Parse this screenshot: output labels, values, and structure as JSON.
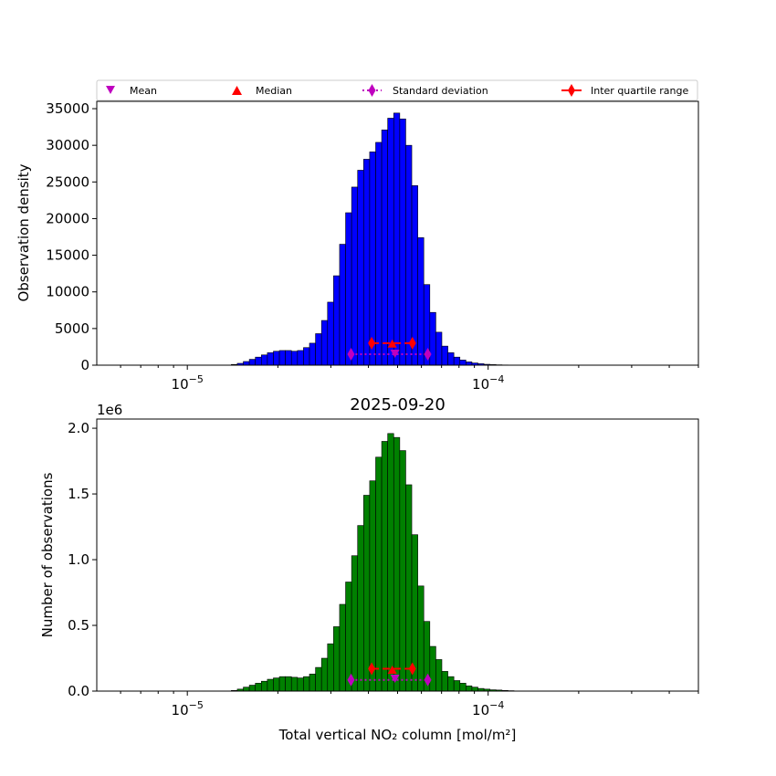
{
  "colors": {
    "top_bars": "#0000ff",
    "bottom_bars": "#008000",
    "bar_edge": "#000000",
    "mean": "#bf00bf",
    "std": "#bf00bf",
    "median": "#ff0000",
    "iqr": "#ff0000"
  },
  "legend": {
    "placement": "top-center",
    "entries": [
      {
        "label": "Mean",
        "marker": "triangle-down",
        "color": "#bf00bf"
      },
      {
        "label": "Median",
        "marker": "triangle-up",
        "color": "#ff0000"
      },
      {
        "label": "Standard deviation",
        "marker": "diamond-dotted-line",
        "color": "#bf00bf"
      },
      {
        "label": "Inter quartile range",
        "marker": "diamond-solid-line",
        "color": "#ff0000"
      }
    ]
  },
  "chart_data": [
    {
      "type": "bar",
      "title": "",
      "xlabel": "",
      "ylabel": "Observation density",
      "xscale": "log",
      "xlim": [
        5e-06,
        0.0005
      ],
      "ylim": [
        0,
        36000
      ],
      "yticks": [
        0,
        5000,
        10000,
        15000,
        20000,
        25000,
        30000,
        35000
      ],
      "ytick_labels": [
        "0",
        "5000",
        "10000",
        "15000",
        "20000",
        "25000",
        "30000",
        "35000"
      ],
      "xtick_labels": [
        "10−5",
        "10−4"
      ],
      "xticks": [
        1e-05,
        0.0001
      ],
      "bin_width_decades": 0.02,
      "bin_start": 1.4e-05,
      "values": [
        100,
        250,
        500,
        800,
        1100,
        1400,
        1700,
        1900,
        2000,
        2000,
        1900,
        2000,
        2400,
        3000,
        4300,
        6100,
        8600,
        12200,
        16500,
        20800,
        24300,
        26600,
        28100,
        29100,
        30400,
        32100,
        33700,
        34400,
        33600,
        30000,
        24500,
        17400,
        11000,
        7200,
        4500,
        2600,
        1700,
        1100,
        700,
        450,
        300,
        200,
        120,
        80,
        50,
        30,
        20
      ],
      "stats": {
        "mean": 4.9e-05,
        "median": 4.8e-05,
        "iqr": [
          4.1e-05,
          5.6e-05
        ],
        "std_range": [
          3.5e-05,
          6.3e-05
        ],
        "median_marker_y": 2900,
        "iqr_y": 3000,
        "mean_marker_y": 1500,
        "std_y": 1500
      }
    },
    {
      "type": "bar",
      "title": "2025-09-20",
      "xlabel": "Total vertical NO₂ column [mol/m²]",
      "ylabel": "Number of observations",
      "xscale": "log",
      "xlim": [
        5e-06,
        0.0005
      ],
      "ylim": [
        0,
        2.07
      ],
      "y_multiplier": "1e6",
      "yticks": [
        0,
        0.5,
        1.0,
        1.5,
        2.0
      ],
      "ytick_labels": [
        "0.0",
        "0.5",
        "1.0",
        "1.5",
        "2.0"
      ],
      "xtick_labels": [
        "10−5",
        "10−4"
      ],
      "xticks": [
        1e-05,
        0.0001
      ],
      "bin_width_decades": 0.02,
      "bin_start": 1.4e-05,
      "values": [
        0.005,
        0.015,
        0.03,
        0.045,
        0.06,
        0.075,
        0.09,
        0.1,
        0.11,
        0.11,
        0.105,
        0.1,
        0.11,
        0.13,
        0.18,
        0.25,
        0.36,
        0.49,
        0.66,
        0.83,
        1.03,
        1.26,
        1.49,
        1.6,
        1.78,
        1.9,
        1.96,
        1.93,
        1.83,
        1.57,
        1.19,
        0.8,
        0.53,
        0.34,
        0.24,
        0.15,
        0.11,
        0.08,
        0.06,
        0.04,
        0.03,
        0.02,
        0.015,
        0.01,
        0.008,
        0.005,
        0.003
      ],
      "stats": {
        "mean": 4.9e-05,
        "median": 4.8e-05,
        "iqr": [
          4.1e-05,
          5.6e-05
        ],
        "std_range": [
          3.5e-05,
          6.3e-05
        ],
        "median_marker_y": 0.16,
        "iqr_y": 0.17,
        "mean_marker_y": 0.09,
        "std_y": 0.085
      }
    }
  ]
}
